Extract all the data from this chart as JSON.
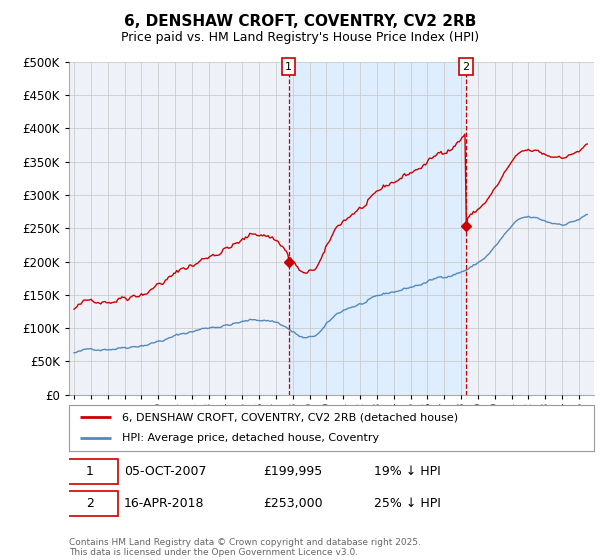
{
  "title": "6, DENSHAW CROFT, COVENTRY, CV2 2RB",
  "subtitle": "Price paid vs. HM Land Registry's House Price Index (HPI)",
  "legend_property": "6, DENSHAW CROFT, COVENTRY, CV2 2RB (detached house)",
  "legend_hpi": "HPI: Average price, detached house, Coventry",
  "footer": "Contains HM Land Registry data © Crown copyright and database right 2025.\nThis data is licensed under the Open Government Licence v3.0.",
  "annotation1": {
    "label": "1",
    "date": "05-OCT-2007",
    "price": "£199,995",
    "note": "19% ↓ HPI"
  },
  "annotation2": {
    "label": "2",
    "date": "16-APR-2018",
    "price": "£253,000",
    "note": "25% ↓ HPI"
  },
  "property_color": "#cc0000",
  "hpi_color": "#5588bb",
  "vline_color": "#cc0000",
  "shade_color": "#ddeeff",
  "background_color": "#ffffff",
  "plot_bg_color": "#eef2f8",
  "grid_color": "#cccccc",
  "ylim": [
    0,
    500000
  ],
  "yticks": [
    0,
    50000,
    100000,
    150000,
    200000,
    250000,
    300000,
    350000,
    400000,
    450000,
    500000
  ],
  "t_sale1": 2007.75,
  "t_sale2": 2018.29,
  "price_sale1": 199995,
  "price_sale2": 253000
}
